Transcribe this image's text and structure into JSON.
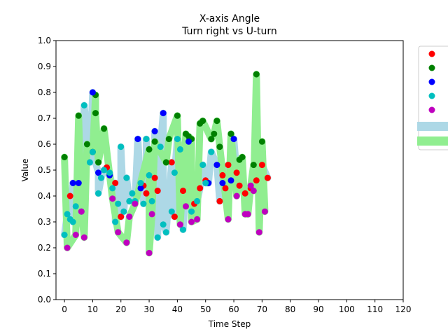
{
  "chart_data": {
    "type": "scatter",
    "title": "X-axis Angle",
    "subtitle": "Turn right vs U-turn",
    "xlabel": "Time Step",
    "ylabel": "Value",
    "xlim": [
      -3,
      120
    ],
    "ylim": [
      0.0,
      1.0
    ],
    "x_ticks": [
      0,
      10,
      20,
      30,
      40,
      50,
      60,
      70,
      80,
      90,
      100,
      110,
      120
    ],
    "x_tick_labels": [
      "0",
      "10",
      "20",
      "30",
      "40",
      "50",
      "60",
      "70",
      "80",
      "90",
      "100",
      "110",
      "120"
    ],
    "y_ticks": [
      0.0,
      0.1,
      0.2,
      0.3,
      0.4,
      0.5,
      0.6,
      0.7,
      0.8,
      0.9,
      1.0
    ],
    "y_tick_labels": [
      "0.0",
      "0.1",
      "0.2",
      "0.3",
      "0.4",
      "0.5",
      "0.6",
      "0.7",
      "0.8",
      "0.9",
      "1.0"
    ],
    "legend_position": "right (clipped)",
    "series": [
      {
        "name": "",
        "color": "#ff0000",
        "kind": "point",
        "x": [
          2,
          15,
          18,
          20,
          28,
          29,
          32,
          33,
          38,
          39,
          42,
          46,
          48,
          50,
          55,
          56,
          57,
          58,
          61,
          62,
          64,
          66,
          68,
          70,
          72
        ],
        "y": [
          0.4,
          0.51,
          0.45,
          0.32,
          0.44,
          0.41,
          0.47,
          0.42,
          0.53,
          0.32,
          0.42,
          0.37,
          0.43,
          0.46,
          0.38,
          0.48,
          0.43,
          0.52,
          0.49,
          0.44,
          0.41,
          0.43,
          0.46,
          0.52,
          0.47
        ]
      },
      {
        "name": "",
        "color": "#008000",
        "kind": "point",
        "x": [
          0,
          5,
          8,
          10,
          11,
          11,
          12,
          14,
          30,
          32,
          36,
          37,
          40,
          43,
          44,
          45,
          48,
          49,
          52,
          53,
          54,
          55,
          59,
          62,
          63,
          67,
          68,
          70
        ],
        "y": [
          0.55,
          0.71,
          0.6,
          0.57,
          0.79,
          0.72,
          0.53,
          0.66,
          0.58,
          0.61,
          0.53,
          0.62,
          0.71,
          0.64,
          0.63,
          0.62,
          0.68,
          0.69,
          0.62,
          0.64,
          0.69,
          0.59,
          0.64,
          0.54,
          0.55,
          0.52,
          0.87,
          0.61
        ]
      },
      {
        "name": "",
        "color": "#0000ff",
        "kind": "point",
        "x": [
          3,
          5,
          10,
          12,
          16,
          26,
          27,
          32,
          35,
          44,
          51,
          54,
          56,
          59,
          60
        ],
        "y": [
          0.45,
          0.45,
          0.8,
          0.49,
          0.48,
          0.62,
          0.43,
          0.65,
          0.72,
          0.61,
          0.45,
          0.52,
          0.45,
          0.46,
          0.62
        ]
      },
      {
        "name": "",
        "color": "#00bfbf",
        "kind": "point",
        "x": [
          0,
          1,
          2,
          3,
          4,
          6,
          7,
          9,
          10,
          12,
          13,
          14,
          16,
          17,
          18,
          19,
          20,
          21,
          22,
          23,
          24,
          25,
          27,
          28,
          29,
          30,
          31,
          33,
          34,
          35,
          36,
          38,
          39,
          40,
          41,
          42,
          45,
          47,
          49,
          50,
          52
        ],
        "y": [
          0.25,
          0.33,
          0.31,
          0.3,
          0.36,
          0.34,
          0.75,
          0.53,
          0.57,
          0.41,
          0.47,
          0.5,
          0.49,
          0.43,
          0.3,
          0.37,
          0.59,
          0.34,
          0.47,
          0.38,
          0.41,
          0.38,
          0.45,
          0.37,
          0.62,
          0.48,
          0.38,
          0.24,
          0.59,
          0.29,
          0.26,
          0.34,
          0.49,
          0.62,
          0.58,
          0.27,
          0.34,
          0.38,
          0.52,
          0.45,
          0.57
        ]
      },
      {
        "name": "",
        "color": "#bf00bf",
        "kind": "point",
        "x": [
          1,
          4,
          6,
          7,
          17,
          19,
          22,
          23,
          25,
          30,
          31,
          41,
          43,
          45,
          47,
          58,
          61,
          64,
          65,
          66,
          67,
          69,
          71
        ],
        "y": [
          0.2,
          0.25,
          0.34,
          0.24,
          0.39,
          0.26,
          0.22,
          0.32,
          0.37,
          0.18,
          0.33,
          0.29,
          0.36,
          0.3,
          0.31,
          0.31,
          0.4,
          0.33,
          0.33,
          0.44,
          0.42,
          0.26,
          0.34
        ]
      }
    ],
    "bands": [
      {
        "name": "",
        "color": "#add8e6"
      },
      {
        "name": "",
        "color": "#90ee90"
      }
    ]
  }
}
